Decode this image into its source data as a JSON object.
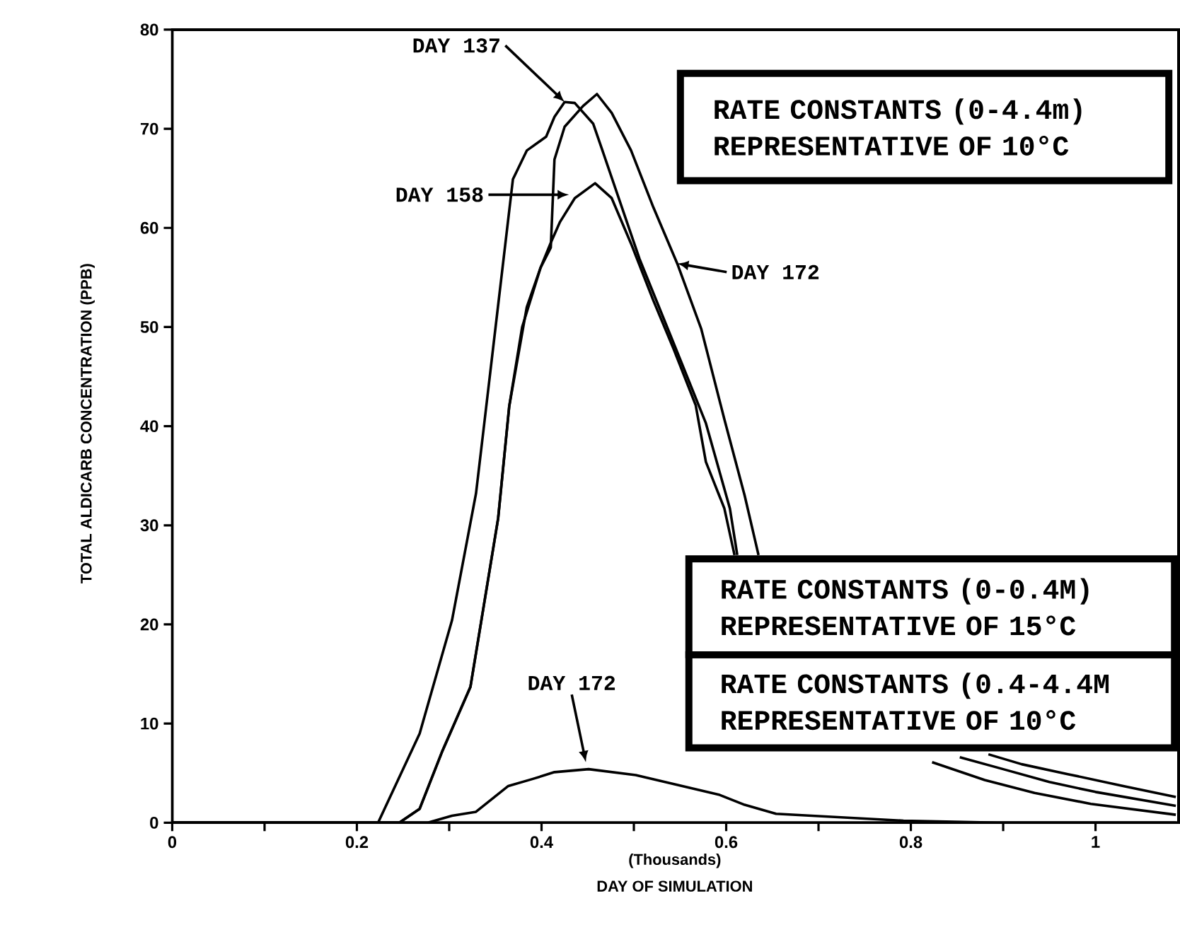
{
  "chart_data": {
    "type": "line",
    "xlabel": "DAY OF SIMULATION",
    "ylabel": "TOTAL ALDICARB CONCENTRATION (PPB)",
    "xlim": [
      0,
      1.09
    ],
    "ylim": [
      0,
      80
    ],
    "xticks": [
      0,
      {
        "value": 0.1,
        "label": null
      },
      0.2,
      {
        "value": 0.3,
        "label": null
      },
      0.4,
      {
        "value": 0.5,
        "label": null
      },
      0.6,
      {
        "value": 0.7,
        "label": null
      },
      0.8,
      {
        "value": 0.9,
        "label": null
      },
      1
    ],
    "yticks": [
      0,
      10,
      20,
      30,
      40,
      50,
      60,
      70,
      80
    ],
    "marker": "none",
    "line_style": "solid",
    "annotations": [
      "(Thousands)",
      "RATE CONSTANTS (0-4.4m) REPRESENTATIVE OF 10°C",
      "RATE CONSTANTS (0-0.4M) REPRESENTATIVE OF 15°C",
      "RATE CONSTANTS (0.4-4.4M REPRESENTATIVE OF 10°C",
      {
        "text": "DAY 137",
        "x": 0.425,
        "y": 72.7
      },
      "DAY 158",
      {
        "text": "DAY 172",
        "x": 0.547,
        "y": 56.4
      },
      {
        "text": "DAY 172",
        "x": 0.448,
        "y": 6.1
      }
    ],
    "series": [
      {
        "color": "#000000",
        "x": [
          0,
          0.223,
          0.268,
          0.303,
          0.329,
          0.338,
          0.369,
          0.384,
          0.405,
          0.414,
          0.425,
          0.436,
          0.456,
          0.466,
          0.506,
          0.543,
          0.578,
          0.604,
          0.612,
          0.7,
          0.823,
          0.88,
          0.934,
          0.995,
          1.087
        ],
        "values": [
          0,
          0,
          9,
          20.4,
          33.2,
          40.3,
          64.9,
          67.8,
          69.2,
          71.2,
          72.7,
          72.6,
          70.5,
          67.8,
          56.9,
          48.4,
          40.3,
          31.7,
          27,
          null,
          6.1,
          4.3,
          3.0,
          1.9,
          0.8
        ]
      },
      {
        "color": "#000000",
        "x": [
          0,
          0.246,
          0.268,
          0.292,
          0.323,
          0.353,
          0.365,
          0.379,
          0.399,
          0.41,
          0.414,
          0.425,
          0.445,
          0.46,
          0.476,
          0.497,
          0.521,
          0.547,
          0.573,
          0.598,
          0.62,
          0.635,
          0.75,
          0.853,
          0.9,
          0.95,
          1.0,
          1.087
        ],
        "values": [
          0,
          0,
          1.4,
          7.1,
          13.7,
          30.7,
          42,
          50,
          56,
          58,
          66.9,
          70.2,
          72.3,
          73.5,
          71.6,
          67.8,
          62.1,
          56.4,
          49.8,
          40.7,
          33,
          27,
          null,
          6.6,
          5.4,
          4.1,
          3.1,
          1.7
        ]
      },
      {
        "color": "#000000",
        "x": [
          0,
          0.246,
          0.268,
          0.292,
          0.323,
          0.353,
          0.365,
          0.384,
          0.399,
          0.41,
          0.42,
          0.436,
          0.458,
          0.476,
          0.497,
          0.521,
          0.543,
          0.567,
          0.578,
          0.598,
          0.609,
          0.75,
          0.884,
          0.92,
          0.97,
          1.03,
          1.087
        ],
        "values": [
          0,
          0,
          1.4,
          7.1,
          13.7,
          30.7,
          42,
          52,
          56,
          58.5,
          60.6,
          63,
          64.5,
          63,
          58.4,
          52.7,
          47.8,
          42.1,
          36.4,
          31.7,
          27,
          null,
          6.9,
          5.9,
          4.9,
          3.7,
          2.6
        ]
      },
      {
        "color": "#000000",
        "x": [
          0,
          0.277,
          0.303,
          0.329,
          0.364,
          0.39,
          0.414,
          0.451,
          0.502,
          0.593,
          0.62,
          0.654,
          0.792,
          0.894,
          1.087
        ],
        "values": [
          0,
          0,
          0.7,
          1.1,
          3.7,
          4.4,
          5.1,
          5.4,
          4.8,
          2.8,
          1.8,
          0.9,
          0.2,
          0,
          0
        ]
      }
    ]
  }
}
